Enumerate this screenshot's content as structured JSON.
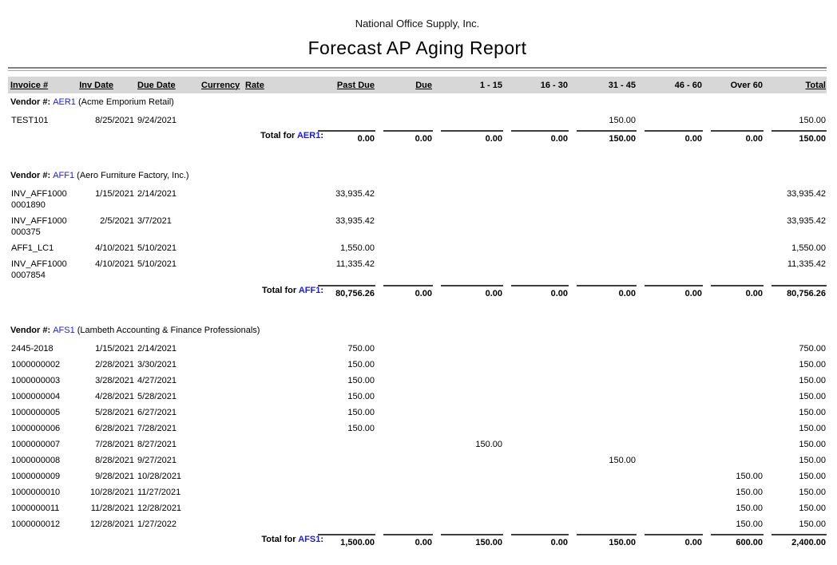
{
  "page": {
    "company": "National Office Supply, Inc.",
    "title": "Forecast AP Aging Report"
  },
  "colors": {
    "link_blue": "#1b1be0",
    "header_bar_bg": "#d7d7d7",
    "rule_dark": "#828282",
    "rule_light": "#a8a8a8"
  },
  "table": {
    "headers": {
      "invoice": "Invoice #",
      "inv_date": "Inv Date",
      "due_date": "Due Date",
      "currency": "Currency",
      "rate": "Rate",
      "past_due": "Past Due",
      "due": "Due",
      "d1_15": "1 - 15",
      "d16_30": "16 - 30",
      "d31_45": "31 - 45",
      "d46_60": "46 - 60",
      "over_60": "Over 60",
      "total": "Total"
    },
    "vendor_label": "Vendor #:",
    "total_label_prefix": "Total for",
    "vendors": [
      {
        "code": "AER1",
        "name": "(Acme Emporium Retail)",
        "rows": [
          {
            "invoice": "TEST101",
            "invoice2": "",
            "inv_date": "8/25/2021",
            "due_date": "9/24/2021",
            "currency": "",
            "rate": "",
            "amounts": {
              "d31_45": "150.00",
              "total": "150.00"
            }
          }
        ],
        "totals": {
          "past_due": "0.00",
          "due": "0.00",
          "d1_15": "0.00",
          "d16_30": "0.00",
          "d31_45": "150.00",
          "d46_60": "0.00",
          "over_60": "0.00",
          "total": "150.00"
        }
      },
      {
        "code": "AFF1",
        "name": "(Aero Furniture Factory, Inc.)",
        "rows": [
          {
            "invoice": "INV_AFF1000",
            "invoice2": "0001890",
            "inv_date": "1/15/2021",
            "due_date": "2/14/2021",
            "currency": "",
            "rate": "",
            "amounts": {
              "past_due": "33,935.42",
              "total": "33,935.42"
            }
          },
          {
            "invoice": "INV_AFF1000",
            "invoice2": "000375",
            "inv_date": "2/5/2021",
            "due_date": "3/7/2021",
            "currency": "",
            "rate": "",
            "amounts": {
              "past_due": "33,935.42",
              "total": "33,935.42"
            }
          },
          {
            "invoice": "AFF1_LC1",
            "invoice2": "",
            "inv_date": "4/10/2021",
            "due_date": "5/10/2021",
            "currency": "",
            "rate": "",
            "amounts": {
              "past_due": "1,550.00",
              "total": "1,550.00"
            }
          },
          {
            "invoice": "INV_AFF1000",
            "invoice2": "0007854",
            "inv_date": "4/10/2021",
            "due_date": "5/10/2021",
            "currency": "",
            "rate": "",
            "amounts": {
              "past_due": "11,335.42",
              "total": "11,335.42"
            }
          }
        ],
        "totals": {
          "past_due": "80,756.26",
          "due": "0.00",
          "d1_15": "0.00",
          "d16_30": "0.00",
          "d31_45": "0.00",
          "d46_60": "0.00",
          "over_60": "0.00",
          "total": "80,756.26"
        }
      },
      {
        "code": "AFS1",
        "name": "(Lambeth Accounting & Finance Professionals)",
        "rows": [
          {
            "invoice": "2445-2018",
            "invoice2": "",
            "inv_date": "1/15/2021",
            "due_date": "2/14/2021",
            "currency": "",
            "rate": "",
            "amounts": {
              "past_due": "750.00",
              "total": "750.00"
            }
          },
          {
            "invoice": "1000000002",
            "invoice2": "",
            "inv_date": "2/28/2021",
            "due_date": "3/30/2021",
            "currency": "",
            "rate": "",
            "amounts": {
              "past_due": "150.00",
              "total": "150.00"
            }
          },
          {
            "invoice": "1000000003",
            "invoice2": "",
            "inv_date": "3/28/2021",
            "due_date": "4/27/2021",
            "currency": "",
            "rate": "",
            "amounts": {
              "past_due": "150.00",
              "total": "150.00"
            }
          },
          {
            "invoice": "1000000004",
            "invoice2": "",
            "inv_date": "4/28/2021",
            "due_date": "5/28/2021",
            "currency": "",
            "rate": "",
            "amounts": {
              "past_due": "150.00",
              "total": "150.00"
            }
          },
          {
            "invoice": "1000000005",
            "invoice2": "",
            "inv_date": "5/28/2021",
            "due_date": "6/27/2021",
            "currency": "",
            "rate": "",
            "amounts": {
              "past_due": "150.00",
              "total": "150.00"
            }
          },
          {
            "invoice": "1000000006",
            "invoice2": "",
            "inv_date": "6/28/2021",
            "due_date": "7/28/2021",
            "currency": "",
            "rate": "",
            "amounts": {
              "past_due": "150.00",
              "total": "150.00"
            }
          },
          {
            "invoice": "1000000007",
            "invoice2": "",
            "inv_date": "7/28/2021",
            "due_date": "8/27/2021",
            "currency": "",
            "rate": "",
            "amounts": {
              "d1_15": "150.00",
              "total": "150.00"
            }
          },
          {
            "invoice": "1000000008",
            "invoice2": "",
            "inv_date": "8/28/2021",
            "due_date": "9/27/2021",
            "currency": "",
            "rate": "",
            "amounts": {
              "d31_45": "150.00",
              "total": "150.00"
            }
          },
          {
            "invoice": "1000000009",
            "invoice2": "",
            "inv_date": "9/28/2021",
            "due_date": "10/28/2021",
            "currency": "",
            "rate": "",
            "amounts": {
              "over_60": "150.00",
              "total": "150.00"
            }
          },
          {
            "invoice": "1000000010",
            "invoice2": "",
            "inv_date": "10/28/2021",
            "due_date": "11/27/2021",
            "currency": "",
            "rate": "",
            "amounts": {
              "over_60": "150.00",
              "total": "150.00"
            }
          },
          {
            "invoice": "1000000011",
            "invoice2": "",
            "inv_date": "11/28/2021",
            "due_date": "12/28/2021",
            "currency": "",
            "rate": "",
            "amounts": {
              "over_60": "150.00",
              "total": "150.00"
            }
          },
          {
            "invoice": "1000000012",
            "invoice2": "",
            "inv_date": "12/28/2021",
            "due_date": "1/27/2022",
            "currency": "",
            "rate": "",
            "amounts": {
              "over_60": "150.00",
              "total": "150.00"
            }
          }
        ],
        "totals": {
          "past_due": "1,500.00",
          "due": "0.00",
          "d1_15": "150.00",
          "d16_30": "0.00",
          "d31_45": "150.00",
          "d46_60": "0.00",
          "over_60": "600.00",
          "total": "2,400.00"
        }
      }
    ]
  }
}
